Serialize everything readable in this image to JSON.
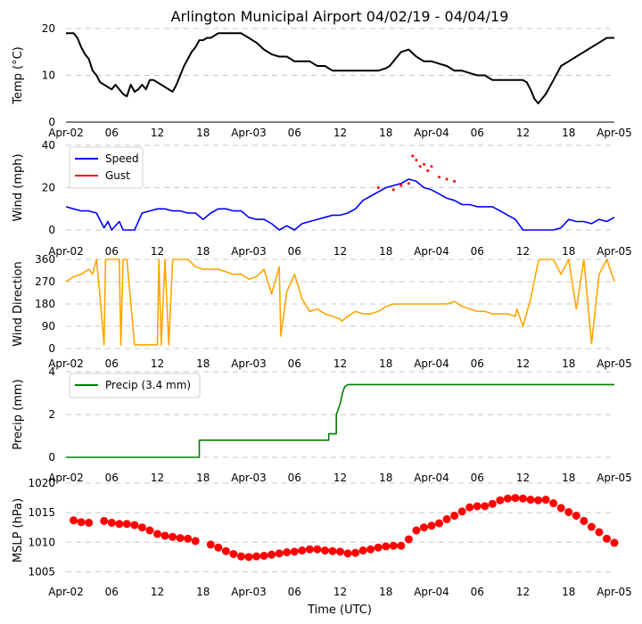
{
  "chart_data": {
    "title": "Arlington Municipal Airport 04/02/19 - 04/04/19",
    "xlabel": "Time (UTC)",
    "x_unit": "hours since 2019-04-02 00:00 UTC",
    "xlim": [
      0,
      72
    ],
    "x_ticks": [
      {
        "h": 0,
        "label": "Apr-02"
      },
      {
        "h": 6,
        "label": "06"
      },
      {
        "h": 12,
        "label": "12"
      },
      {
        "h": 18,
        "label": "18"
      },
      {
        "h": 24,
        "label": "Apr-03"
      },
      {
        "h": 30,
        "label": "06"
      },
      {
        "h": 36,
        "label": "12"
      },
      {
        "h": 42,
        "label": "18"
      },
      {
        "h": 48,
        "label": "Apr-04"
      },
      {
        "h": 54,
        "label": "06"
      },
      {
        "h": 60,
        "label": "12"
      },
      {
        "h": 66,
        "label": "18"
      },
      {
        "h": 72,
        "label": "Apr-05"
      }
    ],
    "panels": [
      {
        "id": "temp",
        "type": "line",
        "ylabel": "Temp ($^\\circ$C)",
        "ylabel_display": "Temp (°C)",
        "ylim": [
          0,
          20
        ],
        "yticks": [
          0,
          10,
          20
        ],
        "series": [
          {
            "name": "Temperature",
            "color": "#000000",
            "x": [
              0,
              1,
              1.5,
              2,
              2.5,
              3,
              3.5,
              4,
              4.5,
              5,
              5.5,
              6,
              6.5,
              7,
              7.5,
              8,
              8.5,
              9,
              9.5,
              10,
              10.5,
              11,
              11.5,
              12,
              12.5,
              13,
              13.5,
              14,
              14.5,
              15,
              15.5,
              16,
              16.5,
              17,
              17.5,
              18,
              18.5,
              19,
              20,
              21,
              22,
              23,
              24,
              25,
              26,
              27,
              28,
              29,
              30,
              31,
              32,
              33,
              34,
              35,
              36,
              37,
              38,
              39,
              40,
              41,
              42,
              42.5,
              43,
              44,
              45,
              46,
              47,
              48,
              49,
              50,
              51,
              52,
              53,
              54,
              55,
              56,
              57,
              58,
              59,
              60,
              60.5,
              61,
              61.5,
              62,
              63,
              64,
              65,
              66,
              67,
              68,
              69,
              70,
              71,
              72
            ],
            "y": [
              19,
              19,
              18,
              16,
              14.5,
              13.5,
              11,
              10,
              8.5,
              8,
              7.5,
              7,
              8,
              7,
              6,
              5.5,
              8,
              6.5,
              7,
              8,
              7,
              9,
              9,
              8.5,
              8,
              7.5,
              7,
              6.5,
              8,
              10,
              12,
              13.5,
              15,
              16,
              17.5,
              17.5,
              18,
              18,
              19,
              19,
              19,
              19,
              18,
              17,
              15.5,
              14.5,
              14,
              14,
              13,
              13,
              13,
              12,
              12,
              11,
              11,
              11,
              11,
              11,
              11,
              11,
              11.5,
              12,
              13,
              15,
              15.5,
              14,
              13,
              13,
              12.5,
              12,
              11,
              11,
              10.5,
              10,
              10,
              9,
              9,
              9,
              9,
              9,
              8.5,
              7,
              5,
              4,
              6,
              9,
              12,
              13,
              14,
              15,
              16,
              17,
              18,
              18
            ]
          }
        ]
      },
      {
        "id": "wind",
        "type": "line",
        "ylabel": "Wind (mph)",
        "ylim": [
          0,
          40
        ],
        "yticks": [
          0,
          20,
          40
        ],
        "legend": [
          "Speed",
          "Gust"
        ],
        "series": [
          {
            "name": "Speed",
            "color": "#0000ff",
            "x": [
              0,
              1,
              2,
              3,
              4,
              5,
              5.5,
              6,
              7,
              7.5,
              8,
              9,
              9.5,
              10,
              11,
              12,
              13,
              14,
              15,
              16,
              17,
              18,
              19,
              20,
              21,
              22,
              23,
              24,
              25,
              26,
              27,
              28,
              29,
              30,
              31,
              32,
              33,
              34,
              35,
              36,
              37,
              38,
              39,
              40,
              41,
              42,
              43,
              44,
              45,
              46,
              47,
              48,
              49,
              50,
              51,
              52,
              53,
              54,
              55,
              56,
              57,
              58,
              59,
              60,
              61,
              62,
              63,
              64,
              65,
              66,
              67,
              68,
              69,
              70,
              71,
              72
            ],
            "y": [
              11,
              10,
              9,
              9,
              8,
              1,
              4,
              0,
              4,
              0,
              0,
              0,
              4,
              8,
              9,
              10,
              10,
              9,
              9,
              8,
              8,
              5,
              8,
              10,
              10,
              9,
              9,
              6,
              5,
              5,
              3,
              0,
              2,
              0,
              3,
              4,
              5,
              6,
              7,
              7,
              8,
              10,
              14,
              16,
              18,
              20,
              21,
              22,
              24,
              23,
              20,
              19,
              17,
              15,
              14,
              12,
              12,
              11,
              11,
              11,
              9,
              7,
              5,
              0,
              0,
              0,
              0,
              0,
              1,
              5,
              4,
              4,
              3,
              5,
              4,
              6
            ]
          },
          {
            "name": "Gust",
            "color": "#ff0000",
            "x": [
              41,
              43,
              44,
              45,
              45.5,
              46,
              46.5,
              47,
              47.5,
              48,
              49,
              50,
              51
            ],
            "y": [
              20,
              19,
              21,
              22,
              35,
              33,
              30,
              31,
              28,
              30,
              25,
              24,
              23
            ]
          }
        ]
      },
      {
        "id": "direction",
        "type": "line",
        "ylabel": "Wind Direction",
        "ylim": [
          0,
          360
        ],
        "yticks": [
          0,
          90,
          180,
          270,
          360
        ],
        "series": [
          {
            "name": "Wind Direction",
            "color": "#ffa500",
            "x": [
              0,
              1,
              2,
              3,
              3.5,
              4,
              4.5,
              5,
              5.2,
              6,
              7,
              7.2,
              7.5,
              8,
              9,
              10,
              11,
              12,
              12.2,
              12.5,
              13,
              13.5,
              14,
              14.5,
              15,
              16,
              17,
              18,
              19,
              20,
              21,
              22,
              23,
              24,
              25,
              26,
              27,
              28,
              28.2,
              29,
              30,
              31,
              32,
              33,
              34,
              35,
              36,
              36.2,
              37,
              38,
              39,
              40,
              41,
              42,
              43,
              44,
              45,
              46,
              47,
              48,
              49,
              50,
              51,
              52,
              53,
              54,
              55,
              56,
              57,
              58,
              59,
              59.2,
              60,
              61,
              62,
              62.2,
              63,
              64,
              65,
              66,
              67,
              68,
              69,
              70,
              71,
              72
            ],
            "y": [
              270,
              290,
              300,
              320,
              300,
              360,
              200,
              15,
              360,
              360,
              360,
              15,
              360,
              360,
              15,
              15,
              15,
              15,
              360,
              15,
              360,
              15,
              360,
              360,
              360,
              360,
              330,
              320,
              320,
              320,
              310,
              300,
              300,
              280,
              290,
              320,
              220,
              330,
              50,
              230,
              300,
              200,
              150,
              160,
              140,
              130,
              120,
              110,
              130,
              150,
              140,
              140,
              150,
              170,
              180,
              180,
              180,
              180,
              180,
              180,
              180,
              180,
              190,
              170,
              160,
              150,
              150,
              140,
              140,
              140,
              130,
              160,
              90,
              200,
              350,
              360,
              360,
              360,
              300,
              360,
              160,
              360,
              20,
              300,
              360,
              270
            ]
          }
        ]
      },
      {
        "id": "precip",
        "type": "line",
        "ylabel": "Precip (mm)",
        "ylim": [
          0,
          4
        ],
        "yticks": [
          0,
          2,
          4
        ],
        "legend": [
          "Precip (3.4 mm)"
        ],
        "series": [
          {
            "name": "Precip (3.4 mm)",
            "color": "#008000",
            "x": [
              0,
              17.5,
              17.5,
              34.5,
              34.5,
              35.5,
              35.5,
              36,
              36.3,
              36.6,
              37,
              72
            ],
            "y": [
              0,
              0,
              0.8,
              0.8,
              1.1,
              1.1,
              2.0,
              2.5,
              3.0,
              3.3,
              3.4,
              3.4
            ]
          }
        ]
      },
      {
        "id": "mslp",
        "type": "scatter",
        "ylabel": "MSLP (hPa)",
        "ylim": [
          1004,
          1020
        ],
        "yticks": [
          1005,
          1010,
          1015,
          1020
        ],
        "series": [
          {
            "name": "MSLP",
            "color": "#ff0000",
            "x": [
              1,
              2,
              3,
              5,
              6,
              7,
              8,
              9,
              10,
              11,
              12,
              13,
              14,
              15,
              16,
              17,
              19,
              20,
              21,
              22,
              23,
              24,
              25,
              26,
              27,
              28,
              29,
              30,
              31,
              32,
              33,
              34,
              35,
              36,
              37,
              38,
              39,
              40,
              41,
              42,
              43,
              44,
              45,
              46,
              47,
              48,
              49,
              50,
              51,
              52,
              53,
              54,
              55,
              56,
              57,
              58,
              59,
              60,
              61,
              62,
              63,
              64,
              65,
              66,
              67,
              68,
              69,
              70,
              71,
              72
            ],
            "y": [
              1013.7,
              1013.4,
              1013.3,
              1013.6,
              1013.3,
              1013.1,
              1013.1,
              1012.9,
              1012.5,
              1012,
              1011.4,
              1011.1,
              1010.9,
              1010.7,
              1010.6,
              1010.2,
              1009.6,
              1009.1,
              1008.5,
              1008,
              1007.6,
              1007.5,
              1007.6,
              1007.7,
              1007.9,
              1008.1,
              1008.3,
              1008.4,
              1008.6,
              1008.8,
              1008.8,
              1008.6,
              1008.5,
              1008.4,
              1008.1,
              1008.2,
              1008.6,
              1008.8,
              1009.1,
              1009.3,
              1009.4,
              1009.4,
              1010.5,
              1012,
              1012.5,
              1012.8,
              1013.2,
              1013.9,
              1014.5,
              1015.2,
              1015.9,
              1016.1,
              1016.1,
              1016.5,
              1017.1,
              1017.4,
              1017.5,
              1017.4,
              1017.2,
              1017.1,
              1017.2,
              1016.6,
              1015.8,
              1015.1,
              1014.5,
              1013.6,
              1012.6,
              1011.7,
              1010.6,
              1009.9
            ]
          }
        ]
      }
    ]
  }
}
